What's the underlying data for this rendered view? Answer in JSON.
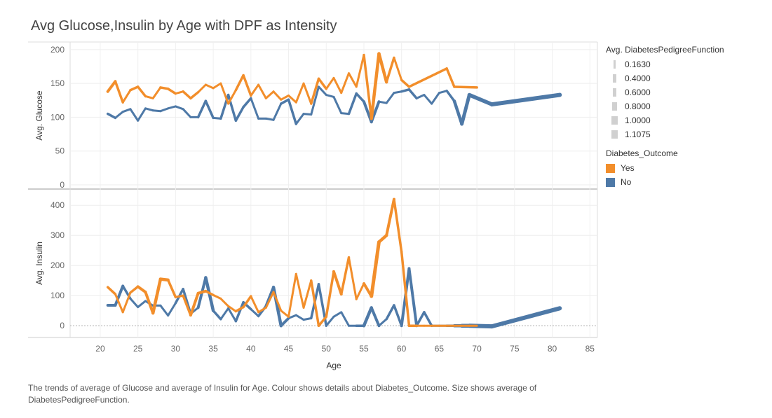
{
  "title": "Avg Glucose,Insulin by Age with DPF as Intensity",
  "caption": "The trends of average of Glucose and average of Insulin for Age.  Colour shows details about Diabetes_Outcome.  Size shows average of DiabetesPedigreeFunction.",
  "colors": {
    "yes": "#f28e2b",
    "no": "#4e79a7",
    "grid": "#eeeeee",
    "axis": "#cccccc"
  },
  "legend": {
    "size_title": "Avg. DiabetesPedigreeFunction",
    "size_items": [
      {
        "label": "0.1630",
        "value": 0.163
      },
      {
        "label": "0.4000",
        "value": 0.4
      },
      {
        "label": "0.6000",
        "value": 0.6
      },
      {
        "label": "0.8000",
        "value": 0.8
      },
      {
        "label": "1.0000",
        "value": 1.0
      },
      {
        "label": "1.1075",
        "value": 1.1075
      }
    ],
    "color_title": "Diabetes_Outcome",
    "color_items": [
      {
        "label": "Yes",
        "color": "#f28e2b"
      },
      {
        "label": "No",
        "color": "#4e79a7"
      }
    ]
  },
  "chart_data": [
    {
      "type": "line",
      "ylabel": "Avg. Glucose",
      "xlabel": "Age",
      "xlim": [
        16,
        86
      ],
      "ylim": [
        0,
        205
      ],
      "yticks": [
        0,
        50,
        100,
        150,
        200
      ],
      "xticks": [
        20,
        25,
        30,
        35,
        40,
        45,
        50,
        55,
        60,
        65,
        70,
        75,
        80,
        85
      ],
      "grid": true,
      "series": [
        {
          "name": "Yes",
          "color": "#f28e2b",
          "x": [
            21,
            22,
            23,
            24,
            25,
            26,
            27,
            28,
            29,
            30,
            31,
            32,
            33,
            34,
            35,
            36,
            37,
            38,
            39,
            40,
            41,
            42,
            43,
            44,
            45,
            46,
            47,
            48,
            49,
            50,
            51,
            52,
            53,
            54,
            55,
            56,
            57,
            58,
            59,
            60,
            61,
            66,
            67,
            70
          ],
          "y": [
            138,
            153,
            122,
            140,
            145,
            131,
            128,
            144,
            142,
            135,
            138,
            128,
            137,
            148,
            143,
            150,
            120,
            140,
            162,
            132,
            148,
            128,
            138,
            126,
            132,
            122,
            150,
            120,
            157,
            142,
            158,
            136,
            165,
            145,
            192,
            98,
            194,
            152,
            188,
            155,
            145,
            172,
            145,
            144
          ],
          "size": [
            4,
            4,
            3,
            3,
            4,
            3,
            3,
            3,
            4,
            3,
            3,
            4,
            3,
            3,
            3,
            3,
            3,
            3,
            4,
            3,
            3,
            3,
            3,
            3,
            3,
            3,
            3,
            3,
            4,
            3,
            3,
            3,
            3,
            3,
            3,
            4,
            5,
            4,
            3,
            3,
            4,
            3,
            4,
            3
          ]
        },
        {
          "name": "No",
          "color": "#4e79a7",
          "x": [
            21,
            22,
            23,
            24,
            25,
            26,
            27,
            28,
            29,
            30,
            31,
            32,
            33,
            34,
            35,
            36,
            37,
            38,
            39,
            40,
            41,
            42,
            43,
            44,
            45,
            46,
            47,
            48,
            49,
            50,
            51,
            52,
            53,
            54,
            55,
            56,
            57,
            58,
            59,
            60,
            61,
            62,
            63,
            64,
            65,
            66,
            67,
            68,
            69,
            72,
            81
          ],
          "y": [
            105,
            99,
            108,
            112,
            95,
            113,
            110,
            109,
            113,
            116,
            112,
            100,
            100,
            124,
            99,
            98,
            133,
            95,
            115,
            128,
            98,
            98,
            96,
            120,
            126,
            90,
            105,
            104,
            145,
            133,
            130,
            106,
            105,
            135,
            123,
            93,
            123,
            121,
            136,
            138,
            141,
            128,
            133,
            120,
            136,
            139,
            124,
            90,
            133,
            119,
            133
          ],
          "size": [
            4,
            3,
            3,
            3,
            3,
            3,
            3,
            3,
            3,
            3,
            3,
            3,
            3,
            4,
            3,
            3,
            4,
            3,
            4,
            3,
            3,
            3,
            3,
            3,
            4,
            3,
            3,
            3,
            3,
            3,
            3,
            3,
            3,
            4,
            3,
            5,
            3,
            3,
            3,
            3,
            4,
            3,
            3,
            3,
            3,
            3,
            4,
            5,
            5,
            6,
            6
          ]
        }
      ]
    },
    {
      "type": "line",
      "ylabel": "Avg. Insulin",
      "xlabel": "Age",
      "xlim": [
        16,
        86
      ],
      "ylim": [
        -25,
        440
      ],
      "yticks": [
        0,
        100,
        200,
        300,
        400
      ],
      "xticks": [
        20,
        25,
        30,
        35,
        40,
        45,
        50,
        55,
        60,
        65,
        70,
        75,
        80,
        85
      ],
      "grid": true,
      "series": [
        {
          "name": "Yes",
          "color": "#f28e2b",
          "x": [
            21,
            22,
            23,
            24,
            25,
            26,
            27,
            28,
            29,
            30,
            31,
            32,
            33,
            34,
            35,
            36,
            37,
            38,
            39,
            40,
            41,
            42,
            43,
            44,
            45,
            46,
            47,
            48,
            49,
            50,
            51,
            52,
            53,
            54,
            55,
            56,
            57,
            58,
            59,
            60,
            61,
            62,
            63,
            64,
            65,
            66,
            67,
            68,
            69,
            70
          ],
          "y": [
            128,
            105,
            45,
            110,
            130,
            112,
            42,
            155,
            152,
            95,
            100,
            35,
            108,
            115,
            102,
            90,
            65,
            48,
            62,
            98,
            45,
            60,
            112,
            50,
            30,
            172,
            60,
            150,
            0,
            30,
            180,
            105,
            227,
            88,
            140,
            98,
            278,
            300,
            420,
            245,
            0,
            0,
            0,
            0,
            0,
            0,
            0,
            0,
            0,
            0
          ],
          "size": [
            4,
            3,
            3,
            3,
            4,
            4,
            4,
            5,
            4,
            3,
            3,
            4,
            4,
            4,
            3,
            3,
            3,
            3,
            4,
            3,
            3,
            3,
            3,
            3,
            3,
            3,
            3,
            3,
            4,
            3,
            4,
            4,
            3,
            3,
            3,
            5,
            5,
            4,
            4,
            3,
            4,
            3,
            3,
            3,
            3,
            3,
            3,
            3,
            3,
            3
          ]
        },
        {
          "name": "No",
          "color": "#4e79a7",
          "x": [
            21,
            22,
            23,
            24,
            25,
            26,
            27,
            28,
            29,
            30,
            31,
            32,
            33,
            34,
            35,
            36,
            37,
            38,
            39,
            40,
            41,
            42,
            43,
            44,
            45,
            46,
            47,
            48,
            49,
            50,
            51,
            52,
            53,
            54,
            55,
            56,
            57,
            58,
            59,
            60,
            61,
            62,
            63,
            64,
            65,
            66,
            67,
            68,
            69,
            72,
            81
          ],
          "y": [
            68,
            68,
            132,
            90,
            62,
            82,
            67,
            67,
            34,
            75,
            122,
            40,
            60,
            160,
            50,
            22,
            58,
            15,
            78,
            55,
            32,
            65,
            128,
            0,
            25,
            35,
            20,
            25,
            138,
            0,
            30,
            45,
            0,
            0,
            0,
            60,
            0,
            22,
            68,
            0,
            190,
            0,
            45,
            0,
            0,
            0,
            0,
            0,
            0,
            -2,
            58
          ],
          "size": [
            4,
            4,
            4,
            3,
            3,
            3,
            3,
            3,
            3,
            3,
            4,
            3,
            3,
            5,
            4,
            3,
            3,
            3,
            4,
            3,
            3,
            4,
            4,
            5,
            3,
            3,
            3,
            3,
            4,
            3,
            3,
            3,
            3,
            3,
            4,
            5,
            3,
            3,
            4,
            3,
            5,
            3,
            4,
            3,
            3,
            3,
            4,
            5,
            6,
            6,
            6
          ]
        }
      ]
    }
  ]
}
